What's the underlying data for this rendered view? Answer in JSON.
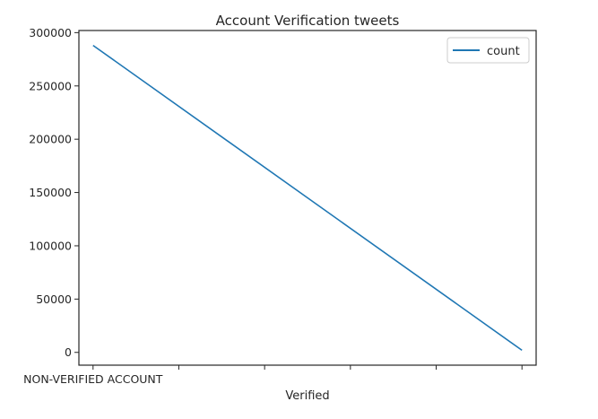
{
  "chart_data": {
    "type": "line",
    "title": "Account Verification tweets",
    "xlabel": "Verified",
    "ylabel": "",
    "categories": [
      "NON-VERIFIED ACCOUNT",
      "",
      "",
      "",
      "",
      ""
    ],
    "series": [
      {
        "name": "count",
        "color": "#1f77b4",
        "x": [
          0,
          1
        ],
        "values": [
          288000,
          2000
        ]
      }
    ],
    "xlim": [
      -0.033,
      1.033
    ],
    "ylim": [
      -12000,
      302000
    ],
    "yticks": [
      0,
      50000,
      100000,
      150000,
      200000,
      250000,
      300000
    ],
    "xticks": [
      0,
      0.2,
      0.4,
      0.6,
      0.8,
      1.0
    ],
    "legend": "top-right",
    "grid": false
  }
}
